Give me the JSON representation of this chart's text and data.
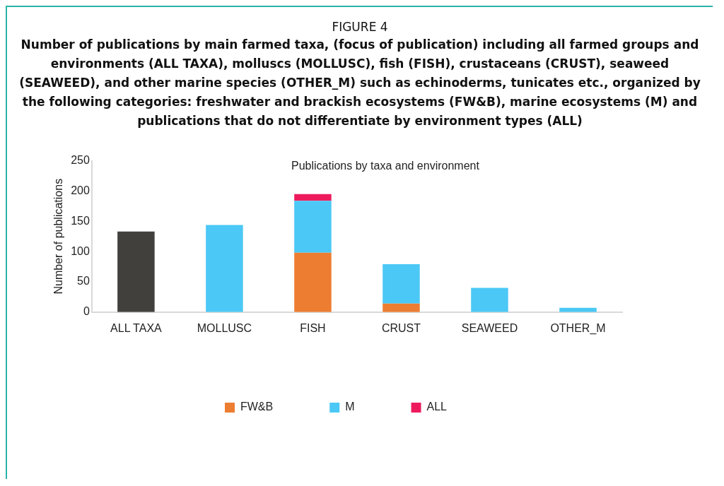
{
  "chart_data": {
    "type": "bar",
    "title": "FIGURE 4",
    "subtitle": "Number of publications by main farmed taxa, (focus of publication) including all farmed groups and environments (ALL TAXA), molluscs (MOLLUSC), fish (FISH), crustaceans (CRUST), seaweed (SEAWEED), and other marine species (OTHER_M) such as echinoderms, tunicates etc., organized by the following categories: freshwater and brackish ecosystems (FW&B), marine ecosystems (M) and publications that do not differentiate by environment types (ALL)",
    "annotations": [
      "Publications by taxa and environment"
    ],
    "ylabel": "Number of publications",
    "categories": [
      "ALL TAXA",
      "MOLLUSC",
      "FISH",
      "CRUST",
      "SEAWEED",
      "OTHER_M"
    ],
    "stacked": true,
    "ylim": [
      0,
      250
    ],
    "yticks": [
      0,
      50,
      100,
      150,
      200,
      250
    ],
    "grid": false,
    "legend": "bottom",
    "series": [
      {
        "color": "#42403d",
        "values": [
          133,
          null,
          null,
          null,
          null,
          null
        ]
      },
      {
        "name": "FW&B",
        "color": "#ed7d31",
        "values": [
          null,
          null,
          98,
          14,
          null,
          null
        ]
      },
      {
        "name": "M",
        "color": "#4bc8f5",
        "values": [
          null,
          144,
          86,
          65,
          40,
          7
        ]
      },
      {
        "name": "ALL",
        "color": "#ed1b5e",
        "values": [
          null,
          null,
          11,
          null,
          null,
          null
        ]
      }
    ]
  }
}
